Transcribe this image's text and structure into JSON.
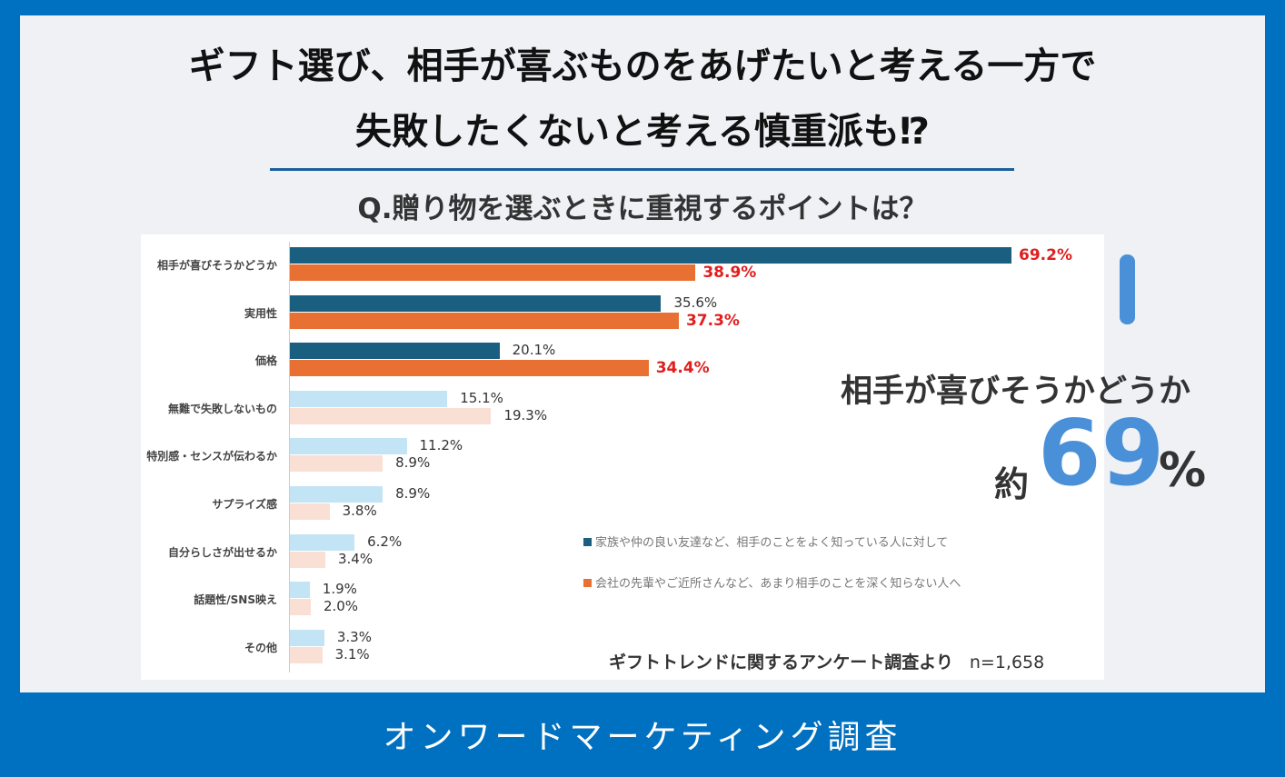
{
  "header": {
    "title_line1": "ギフト選び、相手が喜ぶものをあげたいと考える一方で",
    "title_line2": "失敗したくないと考える慎重派も⁉",
    "question": "Q.贈り物を選ぶときに重視するポイントは？"
  },
  "callout": {
    "label": "相手が喜びそうかどうか",
    "prefix": "約",
    "value": "69",
    "suffix": "%",
    "accent_color": "#4a90d9"
  },
  "source": {
    "text": "ギフトトレンドに関するアンケート調査より",
    "n": "n=1,658"
  },
  "footer": {
    "text": "オンワードマーケティング調査"
  },
  "chart_data": {
    "type": "bar",
    "orientation": "horizontal",
    "title": "Q.贈り物を選ぶときに重視するポイントは？",
    "unit": "%",
    "xlim": [
      0,
      69.2
    ],
    "categories": [
      "相手が喜びそうかどうか",
      "実用性",
      "価格",
      "無難で失敗しないもの",
      "特別感・センスが伝わるか",
      "サプライズ感",
      "自分らしさが出せるか",
      "話題性/SNS映え",
      "その他"
    ],
    "series": [
      {
        "name": "家族や仲の良い友達など、相手のことをよく知っている人に対して",
        "color": "#1a5e80",
        "light_color": "#c3e4f4",
        "values": [
          69.2,
          35.6,
          20.1,
          15.1,
          11.2,
          8.9,
          6.2,
          1.9,
          3.3
        ],
        "labels": [
          "69.2%",
          "35.6%",
          "20.1%",
          "15.1%",
          "11.2%",
          "8.9%",
          "6.2%",
          "1.9%",
          "3.3%"
        ],
        "highlight": [
          true,
          false,
          false,
          false,
          false,
          false,
          false,
          false,
          false
        ]
      },
      {
        "name": "会社の先輩やご近所さんなど、あまり相手のことを深く知らない人へ",
        "color": "#e87033",
        "light_color": "#fae0d4",
        "values": [
          38.9,
          37.3,
          34.4,
          19.3,
          8.9,
          3.8,
          3.4,
          2.0,
          3.1
        ],
        "labels": [
          "38.9%",
          "37.3%",
          "34.4%",
          "19.3%",
          "8.9%",
          "3.8%",
          "3.4%",
          "2.0%",
          "3.1%"
        ],
        "highlight": [
          true,
          true,
          true,
          false,
          false,
          false,
          false,
          false,
          false
        ]
      }
    ],
    "emphasized_categories": 3,
    "legend": "bottom-right"
  }
}
